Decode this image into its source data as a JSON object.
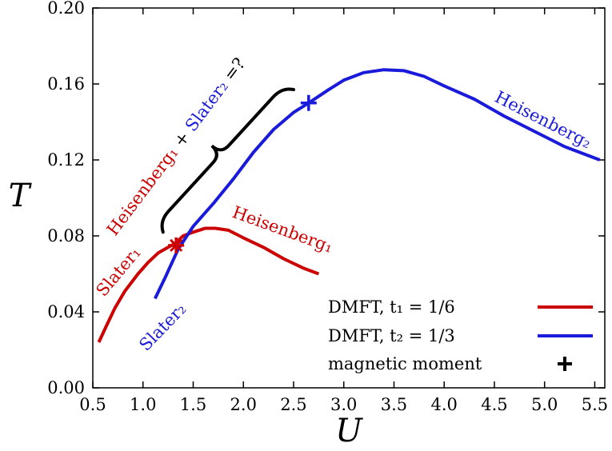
{
  "chart_data": {
    "type": "line",
    "xlabel": "U",
    "ylabel": "T",
    "xlim": [
      0.5,
      5.6
    ],
    "ylim": [
      0.0,
      0.2
    ],
    "x_ticks": [
      "0.5",
      "1.0",
      "1.5",
      "2.0",
      "2.5",
      "3.0",
      "3.5",
      "4.0",
      "4.5",
      "5.0",
      "5.5"
    ],
    "y_ticks": [
      "0.00",
      "0.04",
      "0.08",
      "0.12",
      "0.16",
      "0.20"
    ],
    "grid": false,
    "legend_position": "bottom-right",
    "series": [
      {
        "name": "DMFT, t₁ = 1/6",
        "color": "#cc0000",
        "points": [
          [
            0.56,
            0.024
          ],
          [
            0.63,
            0.032
          ],
          [
            0.72,
            0.042
          ],
          [
            0.82,
            0.051
          ],
          [
            0.95,
            0.06
          ],
          [
            1.05,
            0.066
          ],
          [
            1.15,
            0.071
          ],
          [
            1.25,
            0.074
          ],
          [
            1.32,
            0.076
          ],
          [
            1.4,
            0.08
          ],
          [
            1.5,
            0.082
          ],
          [
            1.62,
            0.084
          ],
          [
            1.72,
            0.084
          ],
          [
            1.85,
            0.083
          ],
          [
            2.0,
            0.079
          ],
          [
            2.2,
            0.074
          ],
          [
            2.4,
            0.068
          ],
          [
            2.6,
            0.063
          ],
          [
            2.75,
            0.06
          ]
        ]
      },
      {
        "name": "DMFT, t₂ = 1/3",
        "color": "#1a1adb",
        "points": [
          [
            1.12,
            0.047
          ],
          [
            1.22,
            0.058
          ],
          [
            1.35,
            0.073
          ],
          [
            1.5,
            0.085
          ],
          [
            1.7,
            0.097
          ],
          [
            1.9,
            0.11
          ],
          [
            2.1,
            0.124
          ],
          [
            2.3,
            0.136
          ],
          [
            2.5,
            0.145
          ],
          [
            2.65,
            0.15
          ],
          [
            2.85,
            0.157
          ],
          [
            3.0,
            0.162
          ],
          [
            3.2,
            0.166
          ],
          [
            3.4,
            0.1675
          ],
          [
            3.6,
            0.167
          ],
          [
            3.8,
            0.164
          ],
          [
            4.0,
            0.159
          ],
          [
            4.3,
            0.152
          ],
          [
            4.6,
            0.143
          ],
          [
            4.9,
            0.135
          ],
          [
            5.2,
            0.127
          ],
          [
            5.55,
            0.12
          ]
        ]
      }
    ],
    "markers": [
      {
        "series": "DMFT, t₁ = 1/6",
        "x": 1.33,
        "y": 0.075,
        "color": "#cc0000"
      },
      {
        "series": "DMFT, t₂ = 1/3",
        "x": 2.65,
        "y": 0.15,
        "color": "#1a1adb"
      }
    ],
    "legend": {
      "entries": [
        {
          "label": "DMFT,  t₁ = 1/6",
          "color": "#cc0000",
          "kind": "line"
        },
        {
          "label": "DMFT,  t₂ = 1/3",
          "color": "#1a1adb",
          "kind": "line"
        },
        {
          "label": "magnetic moment",
          "color": "#000000",
          "kind": "plus"
        }
      ]
    },
    "annotations": {
      "slater1": "Slater₁",
      "slater2": "Slater₂",
      "heisenberg1": "Heisenberg₁",
      "heisenberg2": "Heisenberg₂",
      "combo_heis": "Heisenberg₁",
      "combo_plus": " + ",
      "combo_slater": "Slater₂",
      "combo_eq": " =?"
    },
    "colors": {
      "red": "#cc0000",
      "blue": "#1a1adb",
      "black": "#000000"
    }
  }
}
